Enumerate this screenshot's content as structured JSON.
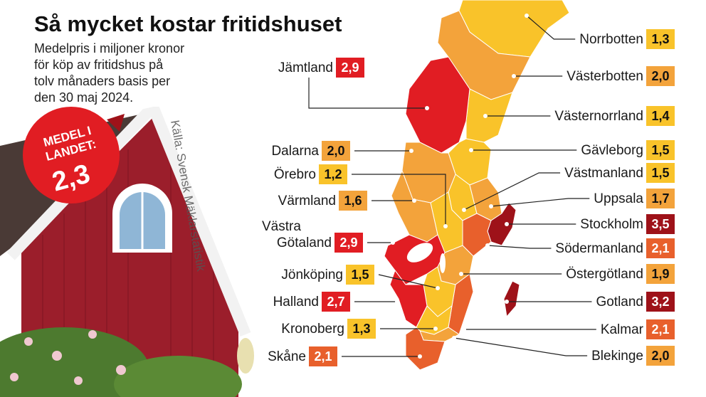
{
  "title": "Så mycket kostar fritidshuset",
  "subtitle": [
    "Medelpris i miljoner kronor",
    "för köp av fritidshus på",
    "tolv månaders basis per",
    "den 30 maj 2024."
  ],
  "source": "Källa: Svensk Mäklarstatistik",
  "badge": {
    "label": "MEDEL I LANDET:",
    "value": "2,3"
  },
  "regions": [
    {
      "name": "Norrbotten",
      "value": "1,3",
      "color": "#f9c32a"
    },
    {
      "name": "Västerbotten",
      "value": "2,0",
      "color": "#f3a33b"
    },
    {
      "name": "Västernorrland",
      "value": "1,4",
      "color": "#f9c32a"
    },
    {
      "name": "Gävleborg",
      "value": "1,5",
      "color": "#f9c32a"
    },
    {
      "name": "Västmanland",
      "value": "1,5",
      "color": "#f9c32a"
    },
    {
      "name": "Uppsala",
      "value": "1,7",
      "color": "#f3a33b"
    },
    {
      "name": "Stockholm",
      "value": "3,5",
      "color": "#9e1219"
    },
    {
      "name": "Södermanland",
      "value": "2,1",
      "color": "#e8602c"
    },
    {
      "name": "Östergötland",
      "value": "1,9",
      "color": "#f3a33b"
    },
    {
      "name": "Gotland",
      "value": "3,2",
      "color": "#9e1219"
    },
    {
      "name": "Kalmar",
      "value": "2,1",
      "color": "#e8602c"
    },
    {
      "name": "Blekinge",
      "value": "2,0",
      "color": "#f3a33b"
    },
    {
      "name": "Jämtland",
      "value": "2,9",
      "color": "#e11d23"
    },
    {
      "name": "Dalarna",
      "value": "2,0",
      "color": "#f3a33b"
    },
    {
      "name": "Örebro",
      "value": "1,2",
      "color": "#f9c32a"
    },
    {
      "name": "Värmland",
      "value": "1,6",
      "color": "#f3a33b"
    },
    {
      "name": "Västra Götaland",
      "value": "2,9",
      "color": "#e11d23"
    },
    {
      "name": "Jönköping",
      "value": "1,5",
      "color": "#f9c32a"
    },
    {
      "name": "Halland",
      "value": "2,7",
      "color": "#e11d23"
    },
    {
      "name": "Kronoberg",
      "value": "1,3",
      "color": "#f9c32a"
    },
    {
      "name": "Skåne",
      "value": "2,1",
      "color": "#e8602c"
    }
  ]
}
